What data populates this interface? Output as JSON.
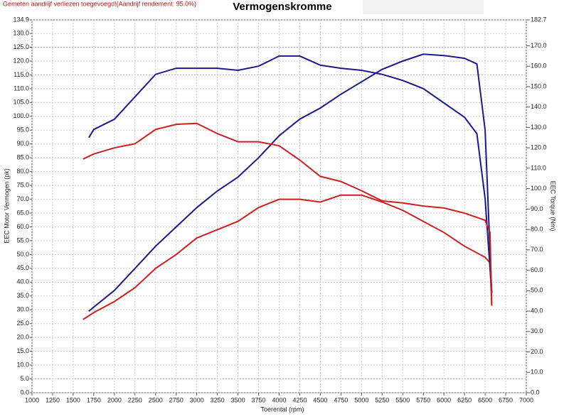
{
  "chart_data": {
    "type": "line",
    "title": "Vermogenskromme",
    "note": "Gemeten aandrijf verliezen toegevoegd!(Aandrijf rendement: 95.0%)",
    "xlabel": "Toerental (rpm)",
    "ylabel": "EEC Motor Vermogen (pk)",
    "y2label": "EEC Torque (Nm)",
    "xlim": [
      1000,
      7000
    ],
    "xticks": [
      1000,
      1250,
      1500,
      1750,
      2000,
      2250,
      2500,
      2750,
      3000,
      3250,
      3500,
      3750,
      4000,
      4250,
      4500,
      4750,
      5000,
      5250,
      5500,
      5750,
      6000,
      6250,
      6500,
      6750,
      7000
    ],
    "ylim": [
      0,
      134.9
    ],
    "yticks": [
      {
        "value": 0,
        "label": "0.0"
      },
      {
        "value": 5,
        "label": "5.0"
      },
      {
        "value": 10,
        "label": "10.0"
      },
      {
        "value": 15,
        "label": "15.0"
      },
      {
        "value": 20,
        "label": "20.0"
      },
      {
        "value": 25,
        "label": "25.0"
      },
      {
        "value": 30,
        "label": "30.0"
      },
      {
        "value": 35,
        "label": "35.0"
      },
      {
        "value": 40,
        "label": "40.0"
      },
      {
        "value": 45,
        "label": "45.0"
      },
      {
        "value": 50,
        "label": "50.0"
      },
      {
        "value": 55,
        "label": "55.0"
      },
      {
        "value": 60,
        "label": "60.0"
      },
      {
        "value": 65,
        "label": "65.0"
      },
      {
        "value": 70,
        "label": "70.0"
      },
      {
        "value": 75,
        "label": "75.0"
      },
      {
        "value": 80,
        "label": "80.0"
      },
      {
        "value": 85,
        "label": "85.0"
      },
      {
        "value": 90,
        "label": "90.0"
      },
      {
        "value": 95,
        "label": "95.0"
      },
      {
        "value": 100,
        "label": "100.0"
      },
      {
        "value": 105,
        "label": "105.0"
      },
      {
        "value": 110,
        "label": "110.0"
      },
      {
        "value": 115,
        "label": "115.0"
      },
      {
        "value": 120,
        "label": "120.0"
      },
      {
        "value": 125,
        "label": "125.0"
      },
      {
        "value": 130,
        "label": "130.0"
      },
      134.9
    ],
    "y2lim": [
      0,
      182.7
    ],
    "y2ticks": [
      {
        "value": 0,
        "label": "0.0"
      },
      {
        "value": 10,
        "label": "10.0"
      },
      {
        "value": 20,
        "label": "20.0"
      },
      {
        "value": 30,
        "label": "30.0"
      },
      {
        "value": 40,
        "label": "40.0"
      },
      {
        "value": 50,
        "label": "50.0"
      },
      {
        "value": 60,
        "label": "60.0"
      },
      {
        "value": 70,
        "label": "70.0"
      },
      {
        "value": 80,
        "label": "80.0"
      },
      {
        "value": 90,
        "label": "90.0"
      },
      {
        "value": 100,
        "label": "100.0"
      },
      {
        "value": 110,
        "label": "110.0"
      },
      {
        "value": 120,
        "label": "120.0"
      },
      {
        "value": 130,
        "label": "130.0"
      },
      {
        "value": 140,
        "label": "140.0"
      },
      {
        "value": 150,
        "label": "150.0"
      },
      {
        "value": 160,
        "label": "160.0"
      },
      {
        "value": 170,
        "label": "170.0"
      },
      182.7
    ],
    "grid": true,
    "series": [
      {
        "color": "#1a1a8c",
        "axis": "y",
        "x": [
          1690,
          1750,
          2000,
          2250,
          2500,
          2750,
          3000,
          3250,
          3500,
          3750,
          4000,
          4250,
          4500,
          4750,
          5000,
          5250,
          5500,
          5750,
          6000,
          6250,
          6400,
          6500,
          6580
        ],
        "values": [
          29.5,
          31,
          37,
          45,
          53,
          60,
          67,
          73,
          78,
          85,
          93,
          99,
          103,
          108,
          112.5,
          117,
          120,
          122.5,
          122,
          121,
          119,
          95,
          36
        ]
      },
      {
        "color": "#cc2020",
        "axis": "y",
        "x": [
          1620,
          1750,
          2000,
          2250,
          2500,
          2750,
          3000,
          3250,
          3500,
          3750,
          4000,
          4250,
          4500,
          4750,
          5000,
          5250,
          5500,
          5750,
          6000,
          6250,
          6500,
          6560,
          6580
        ],
        "values": [
          26.5,
          29,
          33,
          38,
          45,
          50,
          56,
          59,
          62,
          67,
          70,
          70,
          69,
          71.5,
          71.5,
          69,
          66,
          62,
          58,
          53,
          49,
          47,
          31.5
        ]
      },
      {
        "color": "#1a1a8c",
        "axis": "y2",
        "x": [
          1690,
          1750,
          2000,
          2250,
          2500,
          2750,
          3000,
          3250,
          3500,
          3750,
          4000,
          4250,
          4500,
          4750,
          5000,
          5250,
          5500,
          5750,
          6000,
          6250,
          6400,
          6500,
          6580
        ],
        "values": [
          125,
          129,
          134,
          145,
          156,
          159,
          159,
          159,
          158,
          160,
          165,
          165,
          160.5,
          159,
          158,
          156,
          153,
          149,
          142,
          135,
          127,
          95,
          49
        ]
      },
      {
        "color": "#cc2020",
        "axis": "y2",
        "x": [
          1620,
          1750,
          2000,
          2250,
          2500,
          2750,
          3000,
          3250,
          3500,
          3750,
          4000,
          4250,
          4500,
          4750,
          5000,
          5250,
          5500,
          5750,
          6000,
          6250,
          6500,
          6560,
          6580
        ],
        "values": [
          114.5,
          117,
          120,
          122,
          129,
          131.5,
          132,
          127,
          123,
          123,
          121,
          114,
          106,
          103.5,
          99,
          94,
          93,
          91.5,
          90.5,
          88,
          84.5,
          78.5,
          43
        ]
      }
    ]
  }
}
